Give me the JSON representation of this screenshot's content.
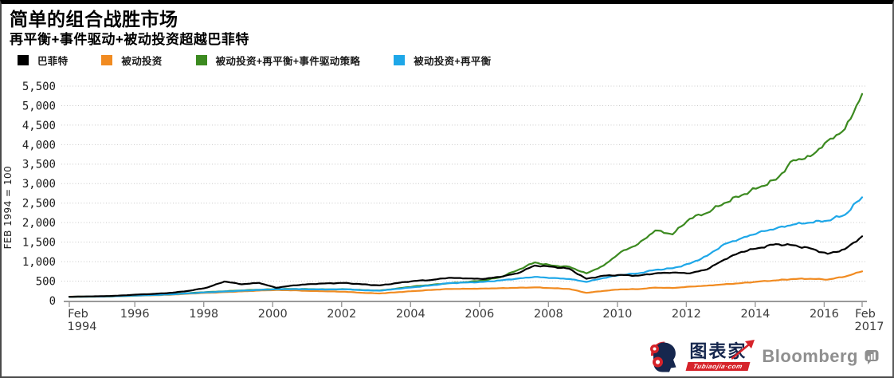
{
  "header": {
    "title": "简单的组合战胜市场",
    "subtitle": "再平衡+事件驱动+被动投资超越巴菲特"
  },
  "footer": {
    "tubiaojia_name": "图表家",
    "tubiaojia_domain": "Tubiaojia·com",
    "bloomberg": "Bloomberg"
  },
  "colors": {
    "buffett": "#000000",
    "passive": "#f18b21",
    "passive_rebalance_event": "#3c8a20",
    "passive_rebalance": "#1ea7e8",
    "grid": "#c9c9c9",
    "axis": "#999999",
    "tubiaojia_navy": "#16274e",
    "tubiaojia_red": "#d6232a",
    "bloomberg_gray": "#8f8f8f"
  },
  "chart_data": {
    "type": "line",
    "title": "简单的组合战胜市场",
    "subtitle": "再平衡+事件驱动+被动投资超越巴菲特",
    "ylabel": "FEB 1994 = 100",
    "xlabel": "",
    "ylim": [
      0,
      5500
    ],
    "grid": "dotted-horizontal",
    "legend_position": "top",
    "yticks": [
      0,
      500,
      1000,
      1500,
      2000,
      2500,
      3000,
      3500,
      4000,
      4500,
      5000,
      5500
    ],
    "ytick_labels": [
      "0",
      "500",
      "1,000",
      "1,500",
      "2,000",
      "2,500",
      "3,000",
      "3,500",
      "4,000",
      "4,500",
      "5,000",
      "5,500"
    ],
    "xlim": [
      1993.95,
      2017.25
    ],
    "xticks": [
      {
        "x": 1994.1,
        "lines": [
          "Feb",
          "1994"
        ]
      },
      {
        "x": 1996.0,
        "lines": [
          "1996"
        ]
      },
      {
        "x": 1998.0,
        "lines": [
          "1998"
        ]
      },
      {
        "x": 2000.0,
        "lines": [
          "2000"
        ]
      },
      {
        "x": 2002.0,
        "lines": [
          "2002"
        ]
      },
      {
        "x": 2004.0,
        "lines": [
          "2004"
        ]
      },
      {
        "x": 2006.0,
        "lines": [
          "2006"
        ]
      },
      {
        "x": 2008.0,
        "lines": [
          "2008"
        ]
      },
      {
        "x": 2010.0,
        "lines": [
          "2010"
        ]
      },
      {
        "x": 2012.0,
        "lines": [
          "2012"
        ]
      },
      {
        "x": 2014.0,
        "lines": [
          "2014"
        ]
      },
      {
        "x": 2016.0,
        "lines": [
          "2016"
        ]
      },
      {
        "x": 2017.1,
        "lines": [
          "Feb",
          "2017"
        ]
      }
    ],
    "x": [
      1994.1,
      1994.6,
      1995.1,
      1995.6,
      1996.1,
      1996.6,
      1997.1,
      1997.6,
      1998.1,
      1998.6,
      1999.1,
      1999.6,
      2000.1,
      2000.6,
      2001.1,
      2001.6,
      2002.1,
      2002.6,
      2003.1,
      2003.6,
      2004.1,
      2004.6,
      2005.1,
      2005.6,
      2006.1,
      2006.6,
      2007.1,
      2007.6,
      2008.1,
      2008.6,
      2009.1,
      2009.6,
      2010.1,
      2010.6,
      2011.1,
      2011.6,
      2012.1,
      2012.6,
      2013.1,
      2013.6,
      2014.1,
      2014.6,
      2015.1,
      2015.6,
      2016.1,
      2016.6,
      2017.1
    ],
    "series": [
      {
        "name": "被动投资",
        "color": "#f18b21",
        "values": [
          100,
          103,
          105,
          116,
          128,
          140,
          155,
          180,
          200,
          218,
          238,
          258,
          272,
          265,
          248,
          238,
          228,
          200,
          185,
          215,
          245,
          275,
          300,
          305,
          310,
          320,
          330,
          340,
          320,
          300,
          200,
          250,
          290,
          295,
          335,
          325,
          360,
          385,
          420,
          450,
          490,
          520,
          555,
          560,
          540,
          615,
          750
        ]
      },
      {
        "name": "被动投资+再平衡+事件驱动策略",
        "color": "#3c8a20",
        "values": [
          100,
          102,
          106,
          118,
          133,
          148,
          165,
          195,
          220,
          240,
          262,
          280,
          295,
          300,
          295,
          288,
          295,
          272,
          258,
          310,
          365,
          405,
          445,
          475,
          515,
          600,
          780,
          980,
          900,
          870,
          700,
          900,
          1250,
          1450,
          1800,
          1700,
          2100,
          2250,
          2500,
          2700,
          2900,
          3100,
          3600,
          3700,
          4100,
          4400,
          5300
        ]
      },
      {
        "name": "被动投资+再平衡",
        "color": "#1ea7e8",
        "values": [
          100,
          103,
          106,
          118,
          132,
          146,
          162,
          190,
          215,
          235,
          255,
          275,
          292,
          296,
          290,
          286,
          292,
          268,
          255,
          300,
          345,
          390,
          450,
          465,
          480,
          520,
          565,
          610,
          580,
          555,
          480,
          580,
          660,
          700,
          790,
          830,
          950,
          1150,
          1450,
          1600,
          1750,
          1850,
          1950,
          2000,
          2050,
          2200,
          2650
        ]
      },
      {
        "name": "巴菲特",
        "color": "#000000",
        "values": [
          100,
          108,
          115,
          132,
          158,
          175,
          205,
          255,
          335,
          490,
          420,
          455,
          330,
          390,
          425,
          445,
          455,
          420,
          390,
          450,
          505,
          530,
          585,
          570,
          555,
          610,
          700,
          900,
          870,
          820,
          560,
          640,
          660,
          640,
          700,
          720,
          700,
          800,
          1050,
          1250,
          1350,
          1450,
          1420,
          1340,
          1200,
          1320,
          1650
        ]
      }
    ],
    "legend_order": [
      "巴菲特",
      "被动投资",
      "被动投资+再平衡+事件驱动策略",
      "被动投资+再平衡"
    ]
  }
}
